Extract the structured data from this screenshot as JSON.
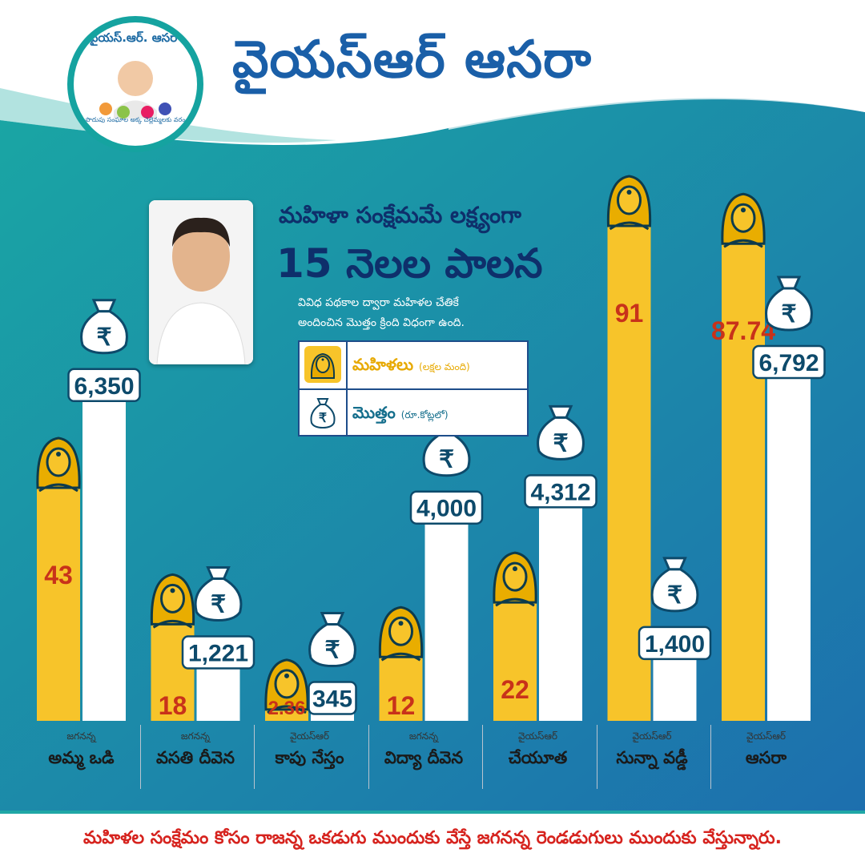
{
  "header": {
    "title": "వైయస్ఆర్ ఆసరా"
  },
  "logo": {
    "ring_text": "వైయస్.ఆర్. ఆసరా",
    "sub_text": "పొదుపు సంఘాల అక్క చెల్లెమ్మలకు వరం"
  },
  "headline": {
    "line1": "మహిళా సంక్షేమమే లక్ష్యంగా",
    "line2": "15 నెలల పాలన",
    "desc1": "వివిధ పథకాల ద్వారా మహిళల చేతికే",
    "desc2": "అందించిన మొత్తం క్రింది విధంగా ఉంది."
  },
  "legend": {
    "women_label": "మహిళలు",
    "women_unit": "(లక్షల మంది)",
    "amount_label": "మొత్తం",
    "amount_unit": "(రూ.కోట్లలో)"
  },
  "colors": {
    "women_bar": "#f7c42a",
    "amount_bar": "#ffffff",
    "women_value": "#c8321a",
    "amount_value": "#0d4a6b",
    "teal": "#1aa6a4",
    "navy": "#1e4d8a"
  },
  "chart_data": {
    "type": "bar",
    "categories": [
      {
        "sub": "జగనన్న",
        "name": "అమ్మ ఒడి"
      },
      {
        "sub": "జగనన్న",
        "name": "వసతి దీవెన"
      },
      {
        "sub": "వైయస్ఆర్",
        "name": "కాపు నేస్తం"
      },
      {
        "sub": "జగనన్న",
        "name": "విద్యా దీవెన"
      },
      {
        "sub": "వైయస్ఆర్",
        "name": "చేయూత"
      },
      {
        "sub": "వైయస్ఆర్",
        "name": "సున్నా వడ్డీ"
      },
      {
        "sub": "వైయస్ఆర్",
        "name": "ఆసరా"
      }
    ],
    "series": [
      {
        "name": "మహిళలు",
        "values": [
          43,
          18,
          2.36,
          12,
          22,
          91,
          87.74
        ],
        "labels": [
          "43",
          "18",
          "2.36",
          "12",
          "22",
          "91",
          "87.74"
        ]
      },
      {
        "name": "మొత్తం",
        "values": [
          6350,
          1221,
          345,
          4000,
          4312,
          1400,
          6792
        ],
        "labels": [
          "6,350",
          "1,221",
          "345",
          "4,000",
          "4,312",
          "1,400",
          "6,792"
        ]
      }
    ]
  },
  "footer": {
    "text": "మహిళల సంక్షేమం కోసం రాజన్న ఒకడుగు ముందుకు వేస్తే జగనన్న రెండడుగులు ముందుకు వేస్తున్నారు."
  }
}
